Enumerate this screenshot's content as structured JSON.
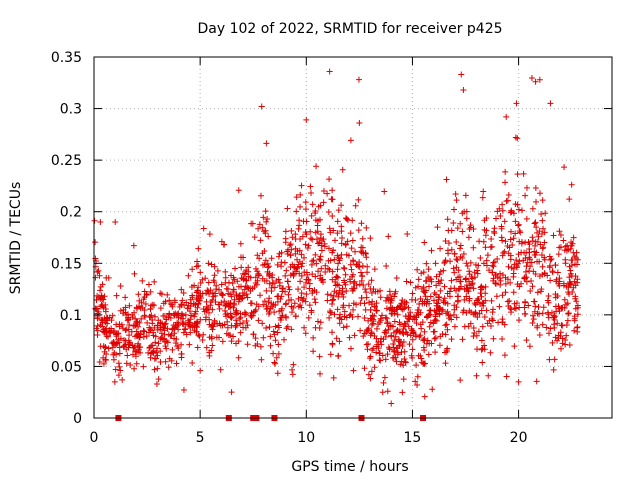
{
  "chart_data": {
    "type": "scatter",
    "title": "Day 102 of 2022, SRMTID for receiver p425",
    "xlabel": "GPS time / hours",
    "ylabel": "SRMTID / TECUs",
    "xlim": [
      0,
      24.4
    ],
    "ylim": [
      0,
      0.35
    ],
    "xticks": [
      0,
      5,
      10,
      15,
      20
    ],
    "xtick_labels": [
      "0",
      "5",
      "10",
      "15",
      "20"
    ],
    "yticks": [
      0,
      0.05,
      0.1,
      0.15,
      0.2,
      0.25,
      0.3,
      0.35
    ],
    "ytick_labels": [
      "0",
      "0.05",
      "0.1",
      "0.15",
      "0.2",
      "0.25",
      "0.3",
      "0.35"
    ],
    "grid": true,
    "marker": "+",
    "color": "#e00000",
    "envelope": {
      "x": [
        0,
        0.5,
        1,
        1.5,
        2,
        2.5,
        3,
        3.5,
        4,
        4.5,
        5,
        5.5,
        6,
        6.5,
        7,
        7.5,
        8,
        8.5,
        9,
        9.5,
        10,
        10.5,
        11,
        11.5,
        12,
        12.5,
        13,
        13.5,
        14,
        14.5,
        15,
        15.5,
        16,
        16.5,
        17,
        17.5,
        18,
        18.5,
        19,
        19.5,
        20,
        20.5,
        21,
        21.5,
        22,
        22.5,
        23
      ],
      "y": [
        0.13,
        0.09,
        0.075,
        0.08,
        0.085,
        0.09,
        0.075,
        0.085,
        0.09,
        0.095,
        0.11,
        0.1,
        0.105,
        0.11,
        0.115,
        0.12,
        0.15,
        0.095,
        0.12,
        0.135,
        0.15,
        0.145,
        0.155,
        0.12,
        0.13,
        0.145,
        0.09,
        0.085,
        0.085,
        0.08,
        0.09,
        0.095,
        0.1,
        0.11,
        0.13,
        0.14,
        0.12,
        0.13,
        0.14,
        0.15,
        0.16,
        0.13,
        0.155,
        0.11,
        0.12,
        0.13,
        0.09
      ],
      "spread": [
        0.03,
        0.025,
        0.025,
        0.025,
        0.025,
        0.025,
        0.025,
        0.025,
        0.025,
        0.025,
        0.03,
        0.03,
        0.03,
        0.03,
        0.03,
        0.035,
        0.045,
        0.04,
        0.04,
        0.045,
        0.05,
        0.05,
        0.055,
        0.04,
        0.045,
        0.05,
        0.035,
        0.03,
        0.03,
        0.03,
        0.03,
        0.035,
        0.035,
        0.04,
        0.045,
        0.05,
        0.045,
        0.045,
        0.05,
        0.05,
        0.055,
        0.05,
        0.055,
        0.045,
        0.045,
        0.05,
        0.035
      ]
    },
    "highlight_points": [
      {
        "x": 7.9,
        "y": 0.302
      },
      {
        "x": 10.0,
        "y": 0.289
      },
      {
        "x": 11.1,
        "y": 0.336
      },
      {
        "x": 12.5,
        "y": 0.286
      },
      {
        "x": 17.3,
        "y": 0.333
      },
      {
        "x": 17.4,
        "y": 0.318
      },
      {
        "x": 19.9,
        "y": 0.305
      },
      {
        "x": 20.8,
        "y": 0.326
      },
      {
        "x": 21.0,
        "y": 0.328
      },
      {
        "x": 14.0,
        "y": 0.014
      },
      {
        "x": 13.6,
        "y": 0.025
      },
      {
        "x": 20.0,
        "y": 0.035
      },
      {
        "x": 1.0,
        "y": 0.19
      },
      {
        "x": 0.3,
        "y": 0.19
      },
      {
        "x": 21.5,
        "y": 0.305
      }
    ],
    "zero_points_x": [
      1.15,
      6.35,
      7.5,
      7.65,
      8.5,
      12.6,
      15.5
    ],
    "seed": 425,
    "points_per_hour": 90,
    "x_data_range": [
      0,
      22.8
    ]
  }
}
